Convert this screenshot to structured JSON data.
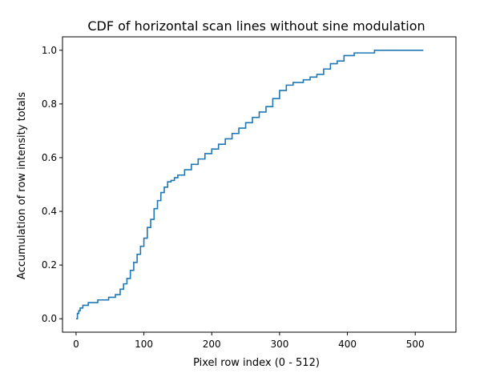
{
  "chart_data": {
    "type": "line",
    "title": "CDF of horizontal scan lines without sine modulation",
    "xlabel": "Pixel row index (0 - 512)",
    "ylabel": "Accumulation of row intensity totals",
    "xlim": [
      -20,
      560
    ],
    "ylim": [
      -0.05,
      1.05
    ],
    "xticks": [
      0,
      100,
      200,
      300,
      400,
      500
    ],
    "yticks": [
      0.0,
      0.2,
      0.4,
      0.6,
      0.8,
      1.0
    ],
    "xtick_labels": [
      "0",
      "100",
      "200",
      "300",
      "400",
      "500"
    ],
    "ytick_labels": [
      "0.0",
      "0.2",
      "0.4",
      "0.6",
      "0.8",
      "1.0"
    ],
    "grid": false,
    "step": true,
    "series": [
      {
        "color": "#1f77b4",
        "points": [
          [
            0,
            0.0
          ],
          [
            2,
            0.02
          ],
          [
            4,
            0.03
          ],
          [
            6,
            0.04
          ],
          [
            10,
            0.05
          ],
          [
            18,
            0.06
          ],
          [
            32,
            0.07
          ],
          [
            48,
            0.08
          ],
          [
            58,
            0.09
          ],
          [
            65,
            0.11
          ],
          [
            70,
            0.13
          ],
          [
            75,
            0.15
          ],
          [
            80,
            0.18
          ],
          [
            85,
            0.21
          ],
          [
            90,
            0.24
          ],
          [
            95,
            0.27
          ],
          [
            100,
            0.3
          ],
          [
            105,
            0.34
          ],
          [
            110,
            0.37
          ],
          [
            115,
            0.41
          ],
          [
            120,
            0.44
          ],
          [
            125,
            0.47
          ],
          [
            130,
            0.49
          ],
          [
            135,
            0.51
          ],
          [
            140,
            0.515
          ],
          [
            145,
            0.525
          ],
          [
            150,
            0.535
          ],
          [
            160,
            0.555
          ],
          [
            170,
            0.575
          ],
          [
            180,
            0.595
          ],
          [
            190,
            0.615
          ],
          [
            200,
            0.632
          ],
          [
            210,
            0.65
          ],
          [
            220,
            0.67
          ],
          [
            230,
            0.69
          ],
          [
            240,
            0.71
          ],
          [
            250,
            0.73
          ],
          [
            260,
            0.75
          ],
          [
            270,
            0.77
          ],
          [
            280,
            0.79
          ],
          [
            290,
            0.82
          ],
          [
            300,
            0.85
          ],
          [
            310,
            0.87
          ],
          [
            320,
            0.88
          ],
          [
            335,
            0.89
          ],
          [
            345,
            0.9
          ],
          [
            355,
            0.91
          ],
          [
            365,
            0.93
          ],
          [
            375,
            0.95
          ],
          [
            385,
            0.96
          ],
          [
            395,
            0.98
          ],
          [
            410,
            0.99
          ],
          [
            440,
            1.0
          ],
          [
            512,
            1.0
          ]
        ]
      }
    ]
  }
}
